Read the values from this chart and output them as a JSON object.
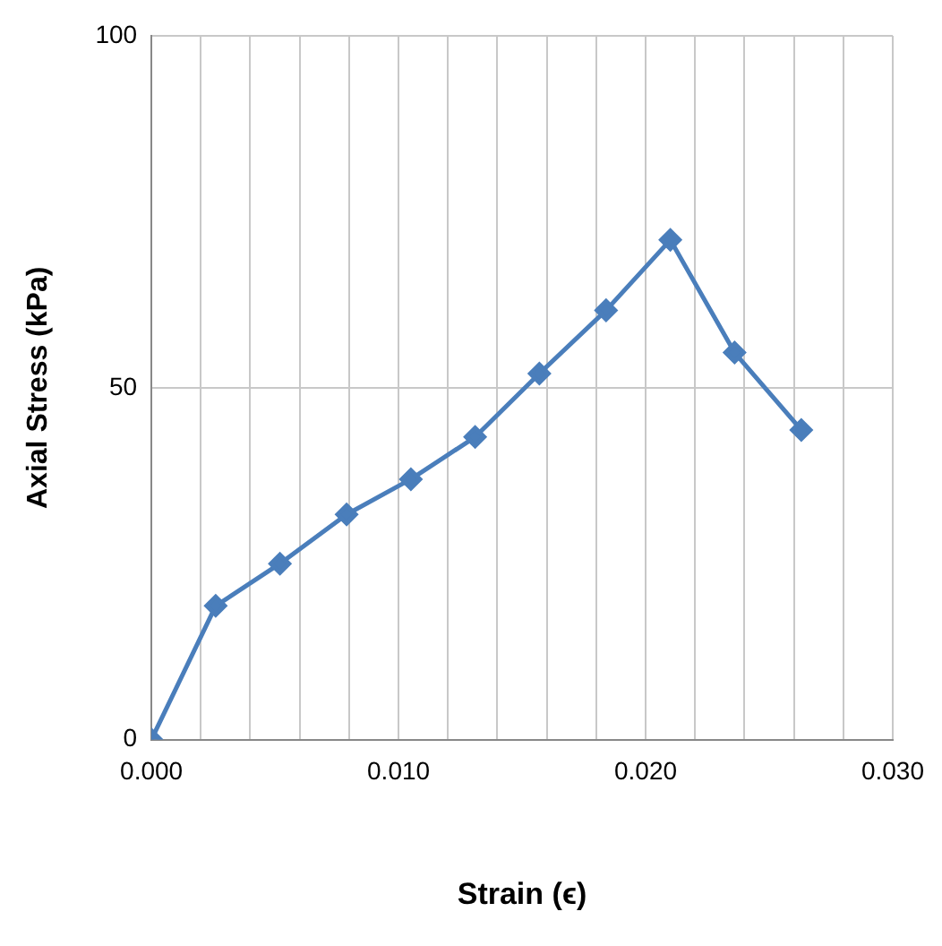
{
  "chart_data": {
    "type": "line",
    "xlabel": "Strain (ϵ)",
    "ylabel": "Axial Stress (kPa)",
    "x": [
      0,
      0.0026,
      0.0052,
      0.0079,
      0.0105,
      0.0131,
      0.0157,
      0.0184,
      0.021,
      0.0236,
      0.0263
    ],
    "series": [
      {
        "color": "#4a7ebb",
        "values": [
          0,
          19,
          25,
          32,
          37,
          43,
          52,
          61,
          71,
          55,
          44
        ]
      }
    ],
    "xlim": [
      0,
      0.03
    ],
    "xticks": [
      {
        "value": 0,
        "label": "0.000"
      },
      {
        "value": 0.002,
        "label": null
      },
      {
        "value": 0.004,
        "label": null
      },
      {
        "value": 0.006,
        "label": null
      },
      {
        "value": 0.008,
        "label": null
      },
      {
        "value": 0.01,
        "label": "0.010"
      },
      {
        "value": 0.012,
        "label": null
      },
      {
        "value": 0.014,
        "label": null
      },
      {
        "value": 0.016,
        "label": null
      },
      {
        "value": 0.018,
        "label": null
      },
      {
        "value": 0.02,
        "label": "0.020"
      },
      {
        "value": 0.022,
        "label": null
      },
      {
        "value": 0.024,
        "label": null
      },
      {
        "value": 0.026,
        "label": null
      },
      {
        "value": 0.028,
        "label": null
      },
      {
        "value": 0.03,
        "label": "0.030"
      }
    ],
    "ylim": [
      0,
      100
    ],
    "yticks": [
      0,
      50,
      100
    ],
    "grid": true,
    "legend": false,
    "marker": "diamond",
    "line_style": "solid"
  }
}
